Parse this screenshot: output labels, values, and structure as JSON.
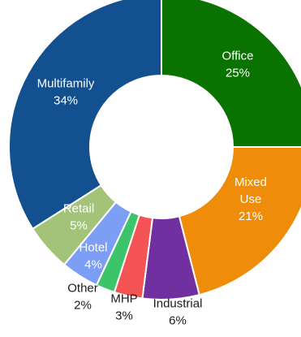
{
  "chart_data": {
    "type": "pie",
    "variant": "donut",
    "title": "",
    "slices": [
      {
        "label": "Office",
        "value": 25,
        "value_label": "25%",
        "color": "#0a7300",
        "label_color": "#ffffff"
      },
      {
        "label": "Mixed Use",
        "value": 21,
        "value_label": "21%",
        "color": "#ef8c0a",
        "label_color": "#ffffff"
      },
      {
        "label": "Industrial",
        "value": 6,
        "value_label": "6%",
        "color": "#7130a0",
        "label_color": "#1a1a1a"
      },
      {
        "label": "MHP",
        "value": 3,
        "value_label": "3%",
        "color": "#f45454",
        "label_color": "#1a1a1a"
      },
      {
        "label": "Other",
        "value": 2,
        "value_label": "2%",
        "color": "#3cc46a",
        "label_color": "#1a1a1a"
      },
      {
        "label": "Hotel",
        "value": 4,
        "value_label": "4%",
        "color": "#7c9ef5",
        "label_color": "#ffffff"
      },
      {
        "label": "Retail",
        "value": 5,
        "value_label": "5%",
        "color": "#a3c478",
        "label_color": "#ffffff"
      },
      {
        "label": "Multifamily",
        "value": 34,
        "value_label": "34%",
        "color": "#12508f",
        "label_color": "#ffffff"
      }
    ],
    "start_angle_deg": 0,
    "direction": "clockwise",
    "legend": "none"
  }
}
